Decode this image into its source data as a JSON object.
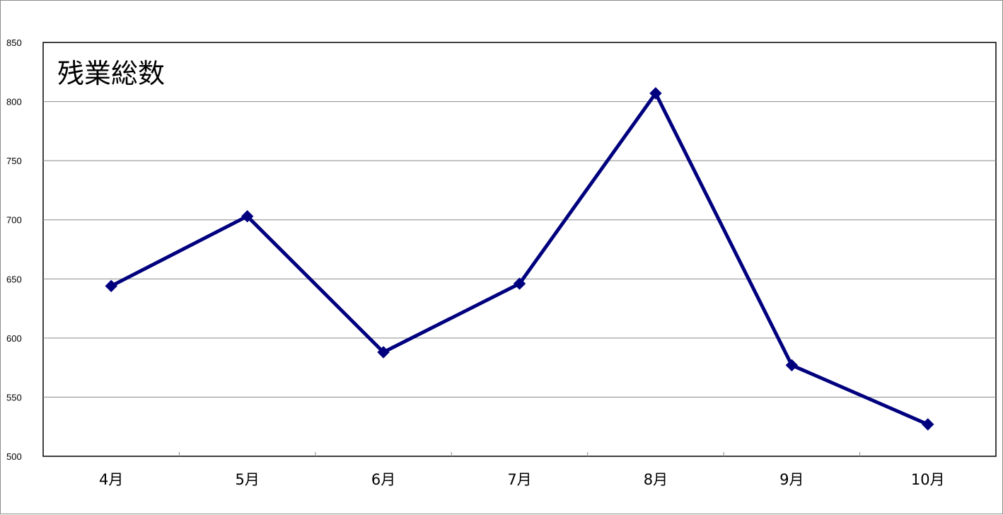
{
  "chart_data": {
    "type": "line",
    "title": "残業総数",
    "categories": [
      "4月",
      "5月",
      "6月",
      "7月",
      "8月",
      "9月",
      "10月"
    ],
    "series": [
      {
        "values": [
          644,
          703,
          588,
          646,
          807,
          577,
          527
        ]
      }
    ],
    "ylim": [
      500,
      850
    ],
    "yticks": [
      "500",
      "550",
      "600",
      "650",
      "700",
      "750",
      "800",
      "850"
    ],
    "grid": true,
    "marker": "diamond",
    "line_color": "#00007f"
  }
}
